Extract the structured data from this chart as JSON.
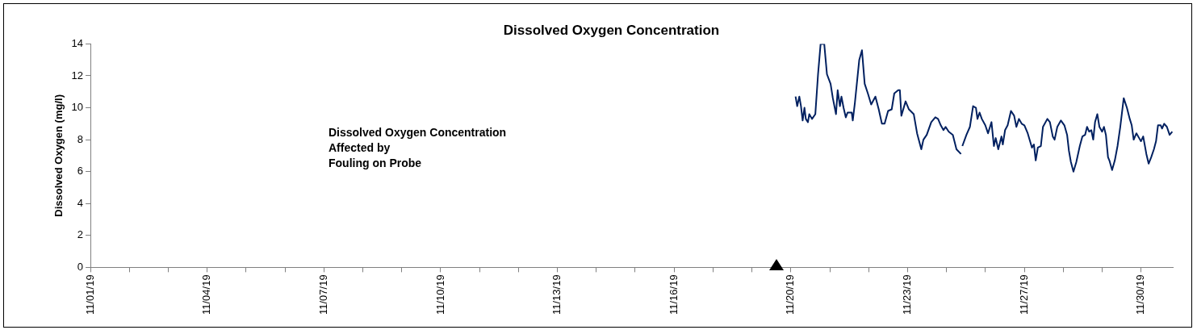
{
  "chart_data": {
    "type": "line",
    "title": "Dissolved Oxygen Concentration",
    "ylabel": "Dissolved Oxygen (mg/l)",
    "annotations": [
      "Dissolved Oxygen Concentration\nAffected by\nFouling on Probe"
    ],
    "xlim": [
      "--11-01T00:00",
      "--11-30T21:00"
    ],
    "xticks": [
      {
        "value": "--11-01T00:00",
        "label": "11/01/19"
      },
      {
        "value": "--11-02T01:47",
        "label": null
      },
      {
        "value": "--11-03T03:33",
        "label": null
      },
      {
        "value": "--11-04T05:20",
        "label": "11/04/19"
      },
      {
        "value": "--11-05T07:07",
        "label": null
      },
      {
        "value": "--11-06T08:53",
        "label": null
      },
      {
        "value": "--11-07T10:40",
        "label": "11/07/19"
      },
      {
        "value": "--11-08T12:27",
        "label": null
      },
      {
        "value": "--11-09T14:13",
        "label": null
      },
      {
        "value": "--11-10T16:00",
        "label": "11/10/19"
      },
      {
        "value": "--11-11T17:47",
        "label": null
      },
      {
        "value": "--11-12T19:33",
        "label": null
      },
      {
        "value": "--11-13T21:20",
        "label": "11/13/19"
      },
      {
        "value": "--11-14T23:07",
        "label": null
      },
      {
        "value": "--11-16T00:53",
        "label": null
      },
      {
        "value": "--11-17T02:40",
        "label": "11/16/19"
      },
      {
        "value": "--11-18T04:27",
        "label": null
      },
      {
        "value": "--11-19T06:13",
        "label": null
      },
      {
        "value": "--11-20T08:00",
        "label": "11/20/19"
      },
      {
        "value": "--11-21T09:47",
        "label": null
      },
      {
        "value": "--11-22T11:33",
        "label": null
      },
      {
        "value": "--11-23T13:20",
        "label": "11/23/19"
      },
      {
        "value": "--11-24T15:07",
        "label": null
      },
      {
        "value": "--11-25T16:53",
        "label": null
      },
      {
        "value": "--11-26T18:40",
        "label": "11/27/19"
      },
      {
        "value": "--11-27T20:27",
        "label": null
      },
      {
        "value": "--11-28T22:13",
        "label": null
      },
      {
        "value": "--11-30T00:00",
        "label": "11/30/19"
      }
    ],
    "ylim": [
      0,
      14
    ],
    "yticks": [
      0,
      2,
      4,
      6,
      8,
      10,
      12,
      14
    ],
    "grid": false,
    "legend": false,
    "marker": "none",
    "line_style": "solid",
    "series": [
      {
        "color": "#002060",
        "x": [
          "--11-20T11:06",
          "--11-20T12:12",
          "--11-20T13:36",
          "--11-20T14:42",
          "--11-20T15:48",
          "--11-20T17:00",
          "--11-20T17:54",
          "--11-20T19:18",
          "--11-20T20:12",
          "--11-20T22:00",
          "--11-21T00:12",
          "--11-21T02:00",
          "--11-21T03:42",
          "--11-21T06:06",
          "--11-21T07:54",
          "--11-21T10:18",
          "--11-21T11:48",
          "--11-21T13:54",
          "--11-21T15:00",
          "--11-21T16:30",
          "--11-21T17:30",
          "--11-21T18:54",
          "--11-21T20:24",
          "--11-21T21:36",
          "--11-22T00:18",
          "--11-22T01:00",
          "--11-22T02:24",
          "--11-22T05:18",
          "--11-22T07:06",
          "--11-22T08:54",
          "--11-22T11:00",
          "--11-22T13:12",
          "--11-22T16:00",
          "--11-22T18:12",
          "--11-22T20:18",
          "--11-22T22:06",
          "--11-23T00:24",
          "--11-23T02:48",
          "--11-23T04:30",
          "--11-23T07:06",
          "--11-23T08:12",
          "--11-23T09:12",
          "--11-23T12:00",
          "--11-23T14:12",
          "--11-23T17:24",
          "--11-23T19:36",
          "--11-23T22:24",
          "--11-23T23:48",
          "--11-24T02:00",
          "--11-24T05:00",
          "--11-24T07:42",
          "--11-24T09:30",
          "--11-24T11:18",
          "--11-24T13:06",
          "--11-24T14:30",
          "--11-24T16:36",
          "--11-24T19:18",
          "--11-24T21:42",
          "--11-25T00:42",
          "--11-25T01:12",
          "--11-25T01:36",
          "--11-25T04:18",
          "--11-25T06:36",
          "--11-25T08:42",
          "--11-25T10:36",
          "--11-25T11:36",
          "--11-25T13:00",
          "--11-25T14:30",
          "--11-25T16:48",
          "--11-25T18:36",
          "--11-25T20:54",
          "--11-25T22:30",
          "--11-25T23:42",
          "--11-26T01:24",
          "--11-26T03:30",
          "--11-26T04:24",
          "--11-26T05:54",
          "--11-26T07:36",
          "--11-26T09:48",
          "--11-26T11:54",
          "--11-26T13:24",
          "--11-26T15:06",
          "--11-26T16:54",
          "--11-26T18:42",
          "--11-26T20:54",
          "--11-26T23:42",
          "--11-27T01:00",
          "--11-27T02:12",
          "--11-27T03:36",
          "--11-27T05:36",
          "--11-27T07:00",
          "--11-27T09:54",
          "--11-27T11:36",
          "--11-27T13:30",
          "--11-27T14:42",
          "--11-27T16:30",
          "--11-27T18:54",
          "--11-27T21:12",
          "--11-27T23:00",
          "--11-28T00:12",
          "--11-28T01:30",
          "--11-28T03:12",
          "--11-28T05:06",
          "--11-28T07:24",
          "--11-28T09:06",
          "--11-28T10:54",
          "--11-28T12:12",
          "--11-28T13:36",
          "--11-28T15:00",
          "--11-28T16:18",
          "--11-28T17:30",
          "--11-28T19:00",
          "--11-28T20:24",
          "--11-28T22:12",
          "--11-28T23:24",
          "--11-29T00:42",
          "--11-29T02:06",
          "--11-29T03:00",
          "--11-29T04:48",
          "--11-29T06:36",
          "--11-29T08:24",
          "--11-29T10:12",
          "--11-29T12:30",
          "--11-29T14:36",
          "--11-29T16:30",
          "--11-29T17:48",
          "--11-29T19:06",
          "--11-29T20:54",
          "--11-29T22:42",
          "--11-29T23:54",
          "--11-30T01:24",
          "--11-30T03:30",
          "--11-30T05:00",
          "--11-30T06:42",
          "--11-30T08:30",
          "--11-30T09:54",
          "--11-30T11:12",
          "--11-30T13:00",
          "--11-30T13:54",
          "--11-30T15:18",
          "--11-30T17:06",
          "--11-30T18:54",
          "--11-30T20:42"
        ],
        "values": [
          10.7,
          10.1,
          10.7,
          10.1,
          9.2,
          10.0,
          9.3,
          9.1,
          9.6,
          9.3,
          9.6,
          12.1,
          14.0,
          14.0,
          12.1,
          11.5,
          10.6,
          9.6,
          11.1,
          10.1,
          10.7,
          10.0,
          9.4,
          9.7,
          9.7,
          9.2,
          10.3,
          13.0,
          13.6,
          11.5,
          10.9,
          10.2,
          10.7,
          9.9,
          9.0,
          9.0,
          9.8,
          9.9,
          10.9,
          11.1,
          11.1,
          9.5,
          10.4,
          9.9,
          9.6,
          8.4,
          7.4,
          8.0,
          8.3,
          9.1,
          9.4,
          9.3,
          8.9,
          8.6,
          8.8,
          8.5,
          8.3,
          7.4,
          7.1,
          null,
          7.6,
          8.3,
          8.8,
          10.1,
          10.0,
          9.3,
          9.7,
          9.3,
          8.9,
          8.4,
          9.1,
          7.6,
          8.1,
          7.4,
          8.2,
          7.7,
          8.6,
          8.9,
          9.8,
          9.5,
          8.8,
          9.3,
          9.0,
          8.9,
          8.4,
          7.5,
          7.7,
          6.7,
          7.5,
          7.6,
          8.8,
          9.3,
          9.1,
          8.2,
          8.0,
          8.8,
          9.2,
          8.9,
          8.3,
          7.3,
          6.6,
          6.0,
          6.6,
          7.6,
          8.2,
          8.3,
          8.8,
          8.5,
          8.6,
          8.0,
          9.1,
          9.6,
          8.8,
          8.5,
          8.8,
          8.3,
          6.9,
          6.7,
          6.1,
          6.7,
          7.6,
          8.8,
          10.6,
          10.0,
          9.3,
          8.9,
          8.0,
          8.4,
          8.1,
          7.9,
          8.2,
          7.1,
          6.5,
          6.9,
          7.4,
          7.9,
          8.9,
          8.9,
          8.7,
          9.0,
          8.8,
          8.3,
          8.5
        ]
      }
    ]
  }
}
